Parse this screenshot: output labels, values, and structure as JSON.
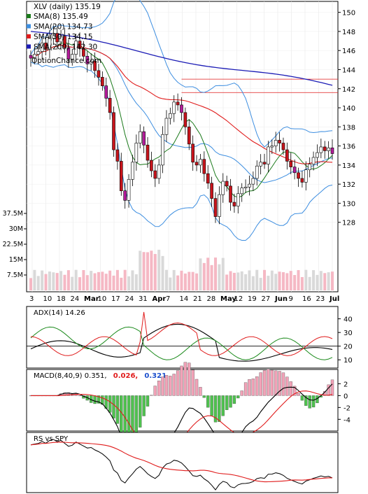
{
  "chart_data": {
    "type": "candlestick",
    "ticker_label": "XLV (daily) 135.19",
    "watermark": "OptionChance.com",
    "legend": [
      {
        "label": "SMA(8) 135.49",
        "color": "#1b7a1b"
      },
      {
        "label": "SMA(20) 134.73",
        "color": "#3d8ee0"
      },
      {
        "label": "SMA(50) 134.15",
        "color": "#e01b1b"
      },
      {
        "label": "SMA(200) 142.30",
        "color": "#1b1bb5"
      }
    ],
    "price_axis": {
      "min": 126,
      "max": 151,
      "ticks": [
        "150",
        "148",
        "146",
        "144",
        "142",
        "140",
        "138",
        "136",
        "134",
        "132",
        "130",
        "128"
      ]
    },
    "volume_axis": {
      "ticks": [
        "37.5M",
        "30M",
        "22.5M",
        "15M",
        "7.5M"
      ]
    },
    "x_tick_labels": [
      "3",
      "10",
      "18",
      "24",
      "Mar",
      "10",
      "17",
      "24",
      "31",
      "Apr",
      "7",
      "14",
      "21",
      "28",
      "May",
      "12",
      "19",
      "27",
      "Jun",
      "9",
      "16",
      "23",
      "Jul"
    ],
    "horizontal_lines": [
      143.0,
      141.6
    ],
    "closes": [
      145.2,
      145.6,
      145.9,
      146.8,
      146.1,
      147.3,
      147.8,
      146.9,
      147.5,
      146.3,
      145.1,
      145.6,
      147.0,
      146.2,
      145.4,
      144.6,
      144.9,
      143.9,
      143.2,
      142.3,
      141.0,
      139.5,
      135.6,
      134.4,
      131.3,
      130.3,
      132.5,
      134.3,
      136.3,
      137.5,
      136.1,
      134.5,
      133.4,
      132.6,
      134.0,
      137.2,
      138.9,
      139.4,
      140.6,
      140.3,
      139.5,
      138.0,
      136.2,
      134.3,
      134.0,
      134.6,
      133.1,
      132.1,
      130.5,
      128.6,
      130.9,
      132.3,
      131.8,
      130.1,
      129.7,
      131.0,
      131.6,
      131.7,
      132.0,
      132.6,
      133.9,
      134.3,
      134.1,
      135.9,
      136.0,
      136.6,
      136.3,
      135.6,
      134.4,
      133.8,
      133.2,
      132.6,
      132.2,
      133.5,
      134.1,
      134.8,
      135.3,
      135.9,
      135.5,
      135.8,
      135.2
    ],
    "indicators": [
      {
        "label": "ADX(14) 14.26",
        "ticks": [
          "40",
          "30",
          "20",
          "10"
        ],
        "series": [
          {
            "name": "ADX",
            "color": "#000000"
          },
          {
            "name": "+DI",
            "color": "#1b8a1b"
          },
          {
            "name": "-DI",
            "color": "#e01b1b"
          }
        ]
      },
      {
        "label": "MACD(8,40,9) 0.351,",
        "values": [
          {
            "label": "0.026,",
            "color": "#e01b1b"
          },
          {
            "label": "0.321",
            "color": "#1b4fcc"
          }
        ],
        "ticks": [
          "2",
          "0",
          "-2",
          "-4"
        ]
      },
      {
        "label": "RS vs SPY",
        "ticks": []
      }
    ]
  }
}
